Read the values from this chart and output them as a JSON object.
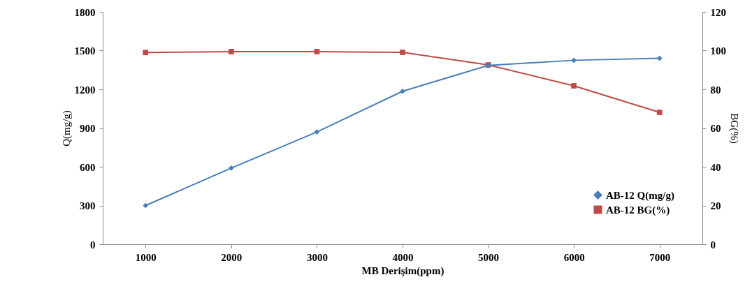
{
  "chart_data": {
    "type": "line",
    "xlabel": "MB Derişim(ppm)",
    "ylabel": "Q(mg/g)",
    "y2label": "BG(%)",
    "categories": [
      "1000",
      "2000",
      "3000",
      "4000",
      "5000",
      "6000",
      "7000"
    ],
    "ylim": [
      0,
      1800
    ],
    "yticks": [
      0,
      300,
      600,
      900,
      1200,
      1500,
      1800
    ],
    "y2lim": [
      0,
      120
    ],
    "y2ticks": [
      0,
      20,
      40,
      60,
      80,
      100,
      120
    ],
    "grid": false,
    "legend": "bottom right",
    "series": [
      {
        "name": "AB-12 Q(mg/g)",
        "color": "#4a7ebb",
        "marker": "diamond",
        "values": [
          300,
          590,
          870,
          1185,
          1385,
          1425,
          1440
        ]
      },
      {
        "name": "AB-12 BG(%)",
        "color": "#be4b48",
        "marker": "square",
        "axis": "y2",
        "values": [
          99,
          99.5,
          99.5,
          99.1,
          92.6,
          81.8,
          68.1
        ]
      }
    ]
  }
}
